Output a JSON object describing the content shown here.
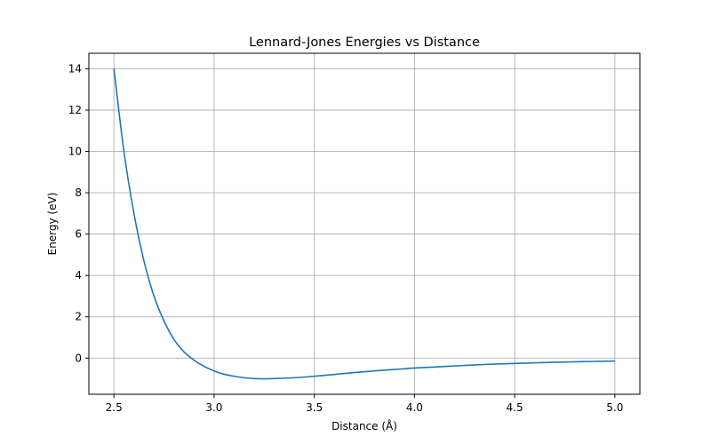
{
  "chart_data": {
    "type": "line",
    "title": "Lennard-Jones Energies vs Distance",
    "xlabel": "Distance (Å)",
    "ylabel": "Energy (eV)",
    "xlim": [
      2.375,
      5.125
    ],
    "ylim": [
      -1.75,
      14.75
    ],
    "xticks": [
      2.5,
      3.0,
      3.5,
      4.0,
      4.5,
      5.0
    ],
    "xtick_labels": [
      "2.5",
      "3.0",
      "3.5",
      "4.0",
      "4.5",
      "5.0"
    ],
    "yticks": [
      0,
      2,
      4,
      6,
      8,
      10,
      12,
      14
    ],
    "ytick_labels": [
      "0",
      "2",
      "4",
      "6",
      "8",
      "10",
      "12",
      "14"
    ],
    "grid": true,
    "series": [
      {
        "color": "#1f77b4",
        "x": [
          2.5,
          2.55,
          2.6,
          2.65,
          2.7,
          2.75,
          2.8,
          2.85,
          2.9,
          2.95,
          3.0,
          3.05,
          3.1,
          3.15,
          3.2,
          3.25,
          3.3,
          3.4,
          3.5,
          3.6,
          3.7,
          3.8,
          3.9,
          4.0,
          4.1,
          4.2,
          4.3,
          4.4,
          4.5,
          4.6,
          4.7,
          4.8,
          4.9,
          5.0
        ],
        "y": [
          14.0,
          10.0,
          7.0,
          4.7,
          3.0,
          1.8,
          0.9,
          0.3,
          -0.1,
          -0.4,
          -0.62,
          -0.78,
          -0.88,
          -0.95,
          -0.99,
          -1.0,
          -0.99,
          -0.95,
          -0.88,
          -0.79,
          -0.7,
          -0.62,
          -0.55,
          -0.48,
          -0.43,
          -0.38,
          -0.33,
          -0.29,
          -0.26,
          -0.23,
          -0.2,
          -0.18,
          -0.16,
          -0.14
        ]
      }
    ]
  }
}
